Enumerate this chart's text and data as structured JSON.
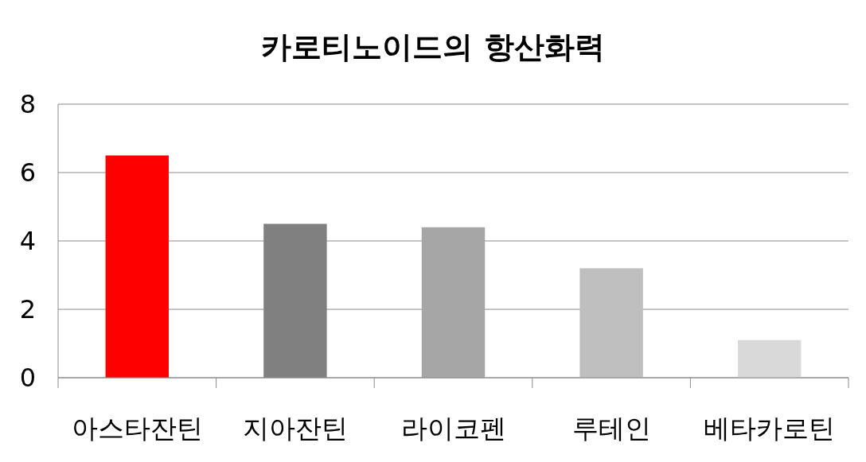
{
  "chart_data": {
    "type": "bar",
    "title": "카로티노이드의 항산화력",
    "categories": [
      "아스타잔틴",
      "지아잔틴",
      "라이코펜",
      "루테인",
      "베타카로틴"
    ],
    "values": [
      6.5,
      4.5,
      4.4,
      3.2,
      1.1
    ],
    "colors": [
      "#ff0000",
      "#808080",
      "#a6a6a6",
      "#bfbfbf",
      "#d9d9d9"
    ],
    "ylim": [
      0,
      8
    ],
    "yticks": [
      0,
      2,
      4,
      6,
      8
    ],
    "grid": "y"
  }
}
